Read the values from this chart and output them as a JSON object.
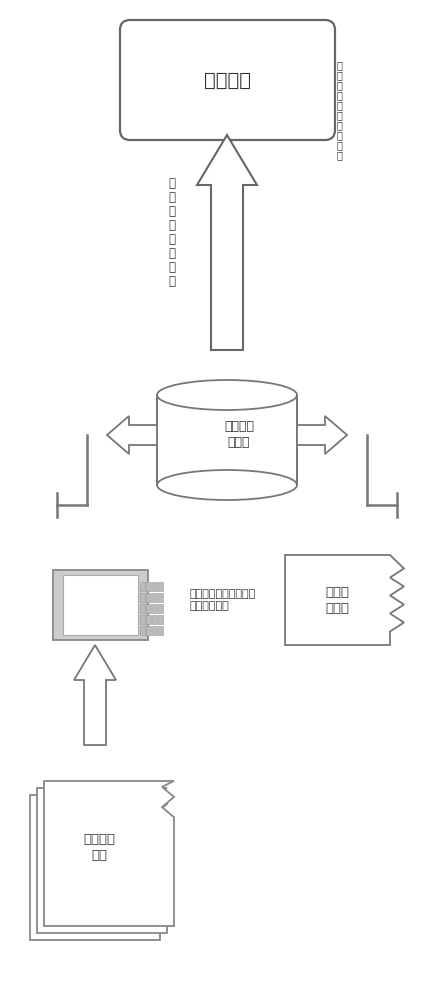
{
  "bg_color": "#ffffff",
  "fig_width": 4.33,
  "fig_height": 10.0,
  "labels": {
    "box_top": "量测机台",
    "box_top_note": "入库量测程\n式执行结果",
    "arrow_up_label": "批量生成\n量测程式",
    "database": "量测机台\n数据库",
    "computer_label": "计算机程序自动化\n转换抽取模板数据",
    "doc_stack": "划版设计\n文档",
    "recipe_box": "量测程\n式模板"
  }
}
